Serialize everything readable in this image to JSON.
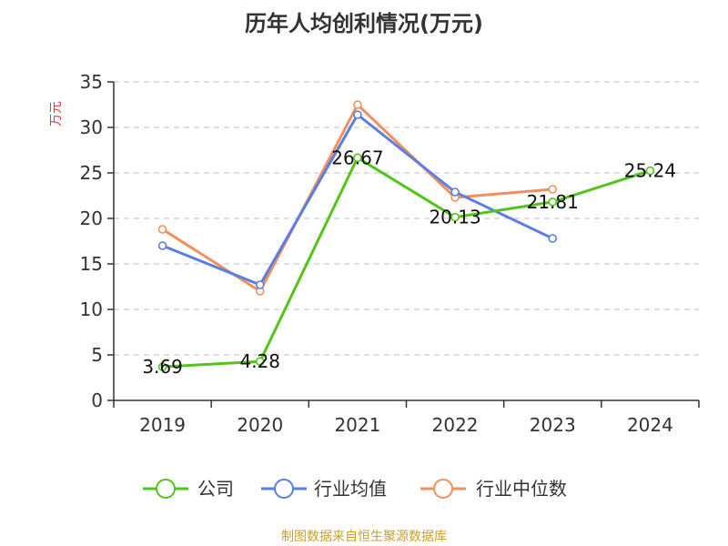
{
  "chart_data": {
    "type": "line",
    "title": "历年人均创利情况(万元)",
    "ylabel": "万元",
    "xlabel": "",
    "categories": [
      "2019",
      "2020",
      "2021",
      "2022",
      "2023",
      "2024"
    ],
    "ylim": [
      0,
      35
    ],
    "yticks": [
      0,
      5,
      10,
      15,
      20,
      25,
      30,
      35
    ],
    "grid": true,
    "legend_position": "bottom",
    "series": [
      {
        "name": "公司",
        "color": "#52c41a",
        "values": [
          3.69,
          4.28,
          26.67,
          20.13,
          21.81,
          25.24
        ],
        "labels": [
          "3.69",
          "4.28",
          "26.67",
          "20.13",
          "21.81",
          "25.24"
        ]
      },
      {
        "name": "行业均值",
        "color": "#5b7fe0",
        "values": [
          17.0,
          12.7,
          31.4,
          22.9,
          17.8,
          null
        ]
      },
      {
        "name": "行业中位数",
        "color": "#f0905e",
        "values": [
          18.8,
          12.0,
          32.5,
          22.3,
          23.2,
          null
        ]
      }
    ]
  },
  "colors": {
    "ylabel": "#e03a3a",
    "source": "#c9a02a",
    "axis": "#333333",
    "grid": "#cccccc"
  },
  "source_text": "制图数据来自恒生聚源数据库"
}
